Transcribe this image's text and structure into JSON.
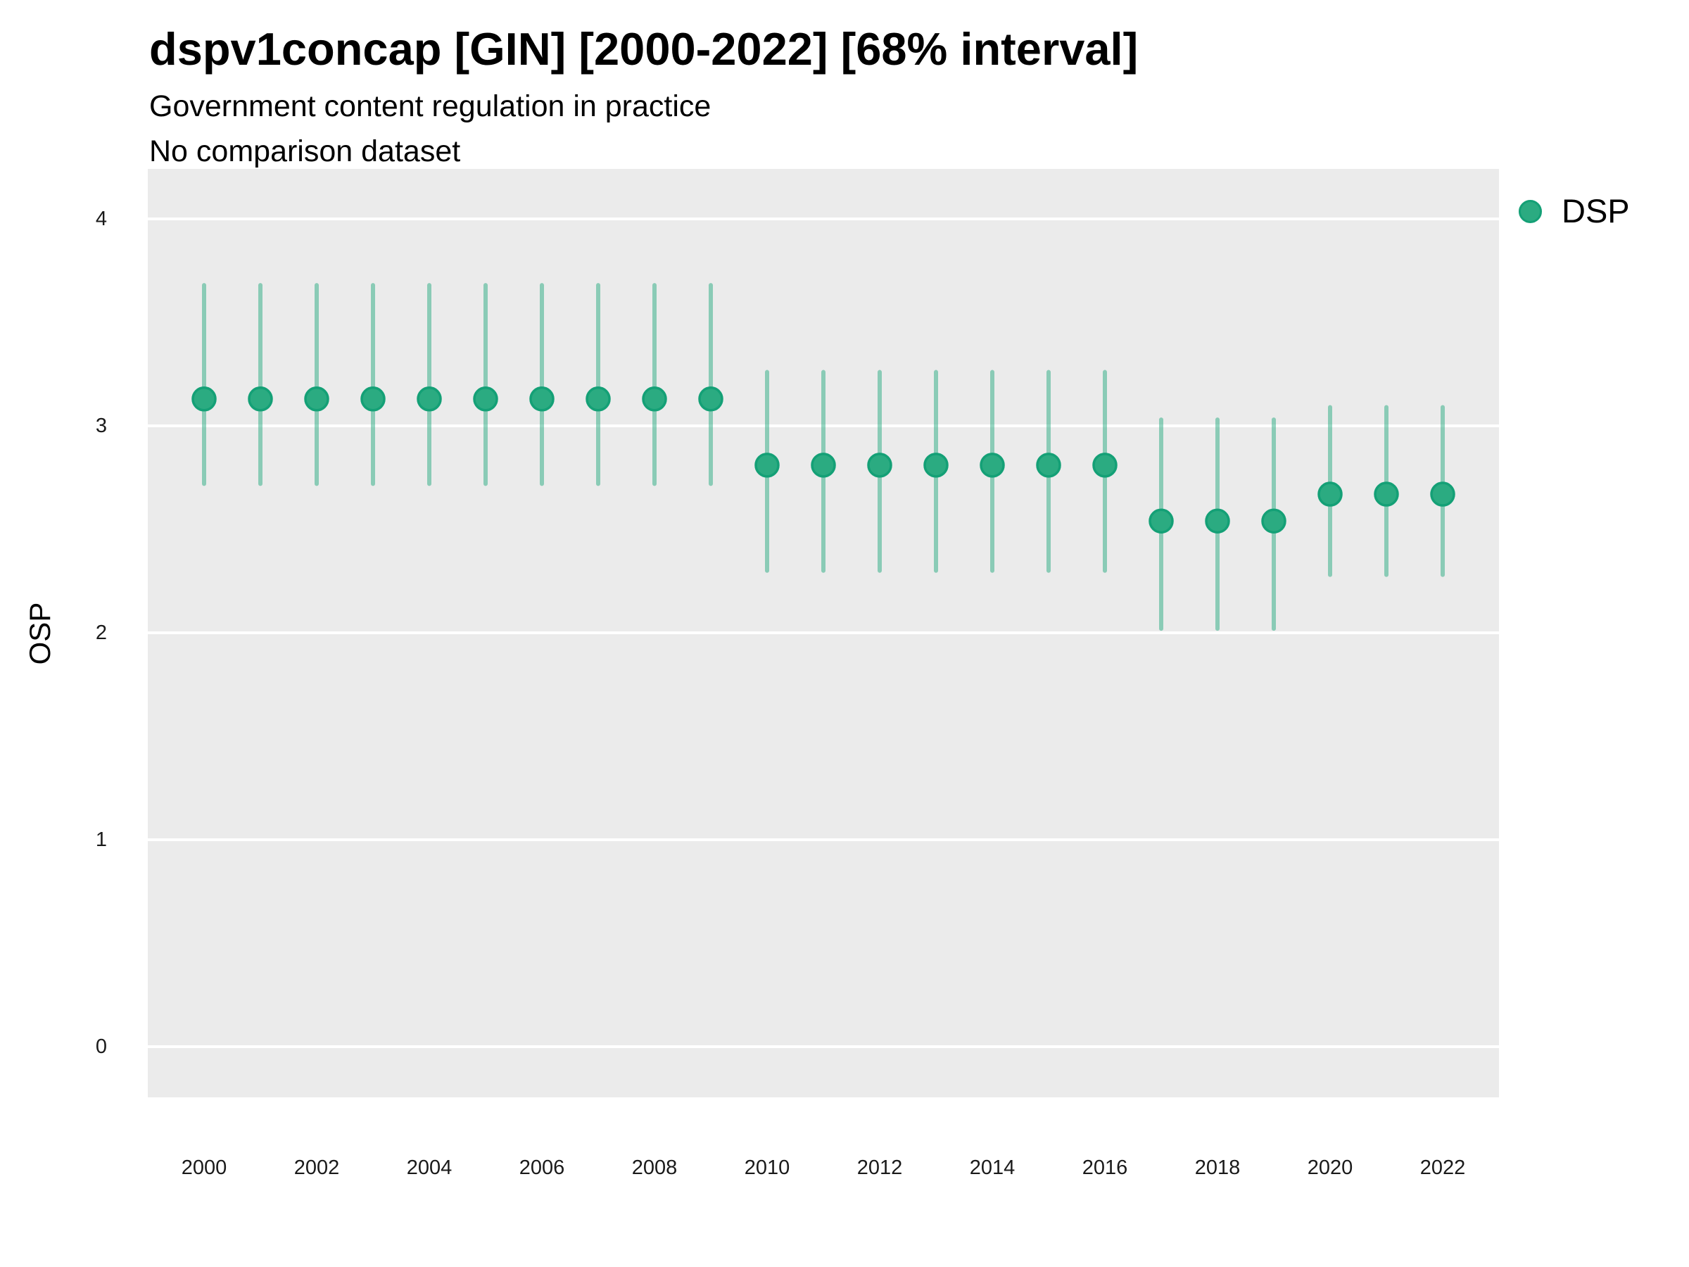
{
  "header": {
    "title": "dspv1concap [GIN] [2000-2022] [68% interval]",
    "subtitle": "Government content regulation in practice",
    "note": "No comparison dataset"
  },
  "legend": {
    "items": [
      {
        "label": "DSP",
        "color": "#2bab81"
      }
    ]
  },
  "colors": {
    "panel_background": "#ebebeb",
    "gridline": "#ffffff",
    "point_fill": "#2bab81",
    "point_stroke": "#14a076",
    "interval_bar": "rgba(42,171,129,0.5)",
    "text": "#000000",
    "tick_text": "#1a1a1a"
  },
  "chart_data": {
    "type": "scatter",
    "title": "dspv1concap [GIN] [2000-2022] [68% interval]",
    "subtitle": "Government content regulation in practice",
    "note": "No comparison dataset",
    "xlabel": "",
    "ylabel": "OSP",
    "interval": "68%",
    "grid": "major-horizontal only, white on gray panel",
    "legend_position": "right-top",
    "ylim": [
      0,
      4
    ],
    "yticks": [
      0,
      1,
      2,
      3,
      4
    ],
    "xticks": [
      2000,
      2002,
      2004,
      2006,
      2008,
      2010,
      2012,
      2014,
      2016,
      2018,
      2020,
      2022
    ],
    "x": [
      2000,
      2001,
      2002,
      2003,
      2004,
      2005,
      2006,
      2007,
      2008,
      2009,
      2010,
      2011,
      2012,
      2013,
      2014,
      2015,
      2016,
      2017,
      2018,
      2019,
      2020,
      2021,
      2022
    ],
    "series": [
      {
        "name": "DSP",
        "values": [
          3.13,
          3.13,
          3.13,
          3.13,
          3.13,
          3.13,
          3.13,
          3.13,
          3.13,
          3.13,
          2.81,
          2.81,
          2.81,
          2.81,
          2.81,
          2.81,
          2.81,
          2.54,
          2.54,
          2.54,
          2.67,
          2.67,
          2.67
        ],
        "lower": [
          2.72,
          2.72,
          2.72,
          2.72,
          2.72,
          2.72,
          2.72,
          2.72,
          2.72,
          2.72,
          2.3,
          2.3,
          2.3,
          2.3,
          2.3,
          2.3,
          2.3,
          2.02,
          2.02,
          2.02,
          2.28,
          2.28,
          2.28
        ],
        "upper": [
          3.68,
          3.68,
          3.68,
          3.68,
          3.68,
          3.68,
          3.68,
          3.68,
          3.68,
          3.68,
          3.26,
          3.26,
          3.26,
          3.26,
          3.26,
          3.26,
          3.26,
          3.03,
          3.03,
          3.03,
          3.09,
          3.09,
          3.09
        ]
      }
    ]
  }
}
